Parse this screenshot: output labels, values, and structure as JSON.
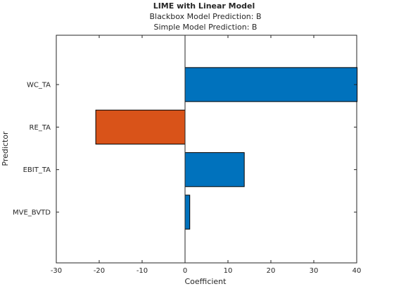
{
  "chart_data": {
    "type": "bar",
    "orientation": "horizontal",
    "title": "LIME with Linear Model",
    "subtitle_lines": [
      "Blackbox Model Prediction: B",
      "Simple Model Prediction: B"
    ],
    "xlabel": "Coefficient",
    "ylabel": "Predictor",
    "categories": [
      "WC_TA",
      "RE_TA",
      "EBIT_TA",
      "MVE_BVTD"
    ],
    "values": [
      40.1,
      -20.8,
      13.8,
      1.1
    ],
    "xlim": [
      -30,
      40
    ],
    "xticks": [
      -30,
      -20,
      -10,
      0,
      10,
      20,
      30,
      40
    ],
    "grid": false,
    "legend": "none",
    "colors": {
      "positive": "#0072BD",
      "negative": "#D95319",
      "axis": "#262626",
      "bar_edge": "#000000"
    }
  }
}
